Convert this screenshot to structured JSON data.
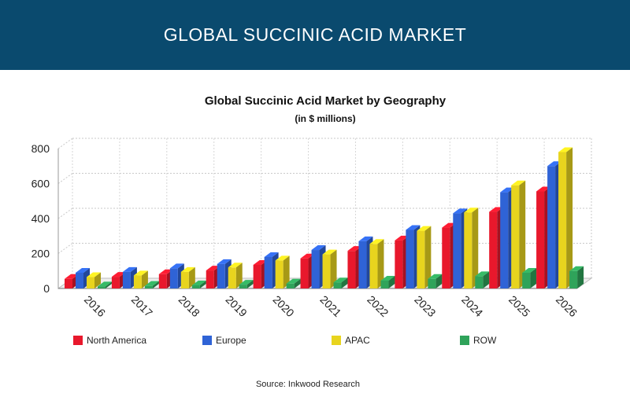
{
  "banner": {
    "title": "GLOBAL SUCCINIC ACID MARKET"
  },
  "colors": {
    "banner": "#0a4a6e",
    "North America": "#e8182c",
    "Europe": "#2f63d6",
    "APAC": "#e8d41e",
    "ROW": "#2fa35a"
  },
  "chart_data": {
    "type": "bar",
    "title": "Global Succinic Acid Market by Geography",
    "subtitle": "(in $ millions)",
    "xlabel": "",
    "ylabel": "",
    "ylim": [
      0,
      800
    ],
    "yticks": [
      0,
      200,
      400,
      600,
      800
    ],
    "grid": true,
    "legend": "bottom",
    "style": "3d",
    "categories": [
      "2016",
      "2017",
      "2018",
      "2019",
      "2020",
      "2021",
      "2022",
      "2023",
      "2024",
      "2025",
      "2026"
    ],
    "series": [
      {
        "name": "North America",
        "values": [
          55,
          67,
          82,
          103,
          135,
          172,
          215,
          275,
          348,
          438,
          555
        ]
      },
      {
        "name": "Europe",
        "values": [
          90,
          95,
          115,
          140,
          180,
          220,
          270,
          335,
          430,
          550,
          700
        ]
      },
      {
        "name": "APAC",
        "values": [
          65,
          75,
          95,
          120,
          160,
          195,
          255,
          330,
          435,
          590,
          780
        ]
      },
      {
        "name": "ROW",
        "values": [
          12,
          15,
          18,
          22,
          28,
          35,
          45,
          55,
          70,
          90,
          100
        ]
      }
    ]
  },
  "source": "Source: Inkwood Research"
}
